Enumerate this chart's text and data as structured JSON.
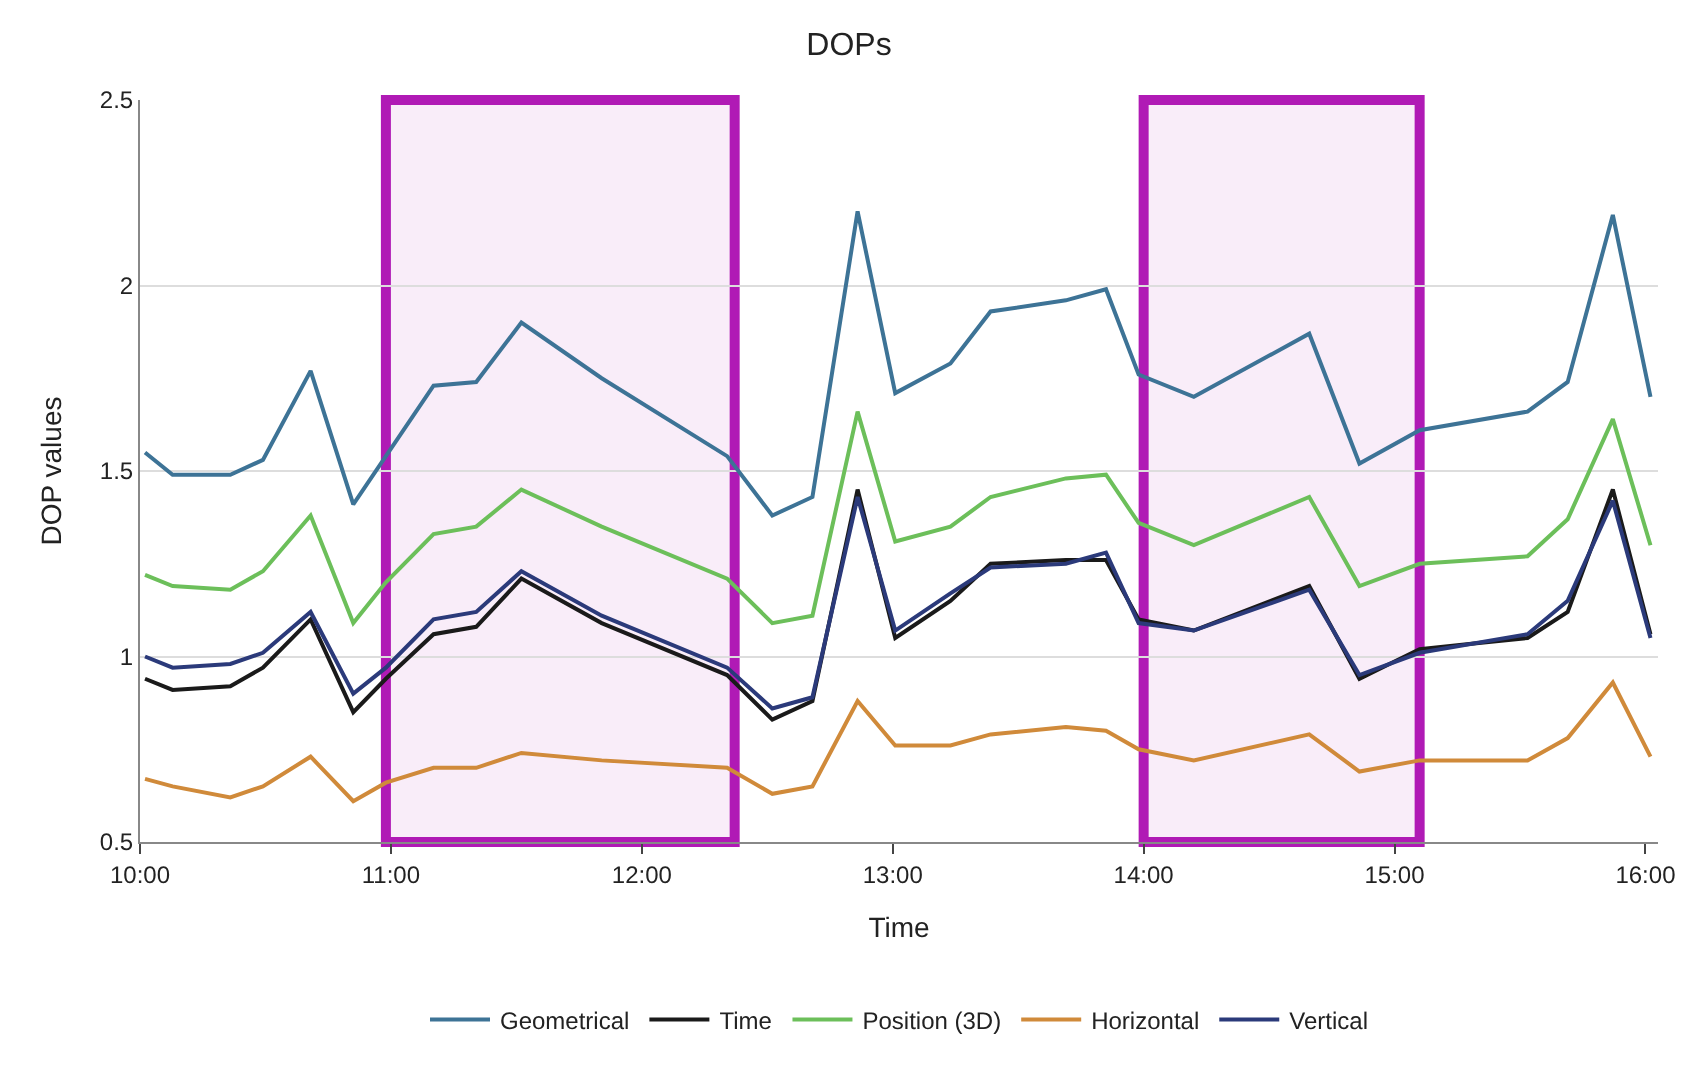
{
  "chart_data": {
    "type": "line",
    "title": "DOPs",
    "xlabel": "Time",
    "ylabel": "DOP values",
    "x": [
      10.02,
      10.13,
      10.36,
      10.49,
      10.68,
      10.85,
      10.98,
      11.17,
      11.34,
      11.52,
      11.84,
      12.34,
      12.52,
      12.68,
      12.86,
      13.01,
      13.23,
      13.39,
      13.69,
      13.85,
      13.98,
      14.2,
      14.66,
      14.86,
      15.1,
      15.53,
      15.69,
      15.87,
      16.02
    ],
    "series": [
      {
        "name": "Geometrical",
        "color": "#3d7396",
        "values": [
          1.55,
          1.49,
          1.49,
          1.53,
          1.77,
          1.41,
          1.54,
          1.73,
          1.74,
          1.9,
          1.75,
          1.54,
          1.38,
          1.43,
          2.2,
          1.71,
          1.79,
          1.93,
          1.96,
          1.99,
          1.76,
          1.7,
          1.87,
          1.52,
          1.61,
          1.66,
          1.74,
          2.19,
          1.7
        ]
      },
      {
        "name": "Time",
        "color": "#1a1a1a",
        "values": [
          0.94,
          0.91,
          0.92,
          0.97,
          1.1,
          0.85,
          0.94,
          1.06,
          1.08,
          1.21,
          1.09,
          0.95,
          0.83,
          0.88,
          1.45,
          1.05,
          1.15,
          1.25,
          1.26,
          1.26,
          1.1,
          1.07,
          1.19,
          0.94,
          1.02,
          1.05,
          1.12,
          1.45,
          1.06
        ]
      },
      {
        "name": "Position (3D)",
        "color": "#6cbf5a",
        "values": [
          1.22,
          1.19,
          1.18,
          1.23,
          1.38,
          1.09,
          1.2,
          1.33,
          1.35,
          1.45,
          1.35,
          1.21,
          1.09,
          1.11,
          1.66,
          1.31,
          1.35,
          1.43,
          1.48,
          1.49,
          1.36,
          1.3,
          1.43,
          1.19,
          1.25,
          1.27,
          1.37,
          1.64,
          1.3
        ]
      },
      {
        "name": "Horizontal",
        "color": "#d08a3a",
        "values": [
          0.67,
          0.65,
          0.62,
          0.65,
          0.73,
          0.61,
          0.66,
          0.7,
          0.7,
          0.74,
          0.72,
          0.7,
          0.63,
          0.65,
          0.88,
          0.76,
          0.76,
          0.79,
          0.81,
          0.8,
          0.75,
          0.72,
          0.79,
          0.69,
          0.72,
          0.72,
          0.78,
          0.93,
          0.73
        ]
      },
      {
        "name": "Vertical",
        "color": "#2b3a7a",
        "values": [
          1.0,
          0.97,
          0.98,
          1.01,
          1.12,
          0.9,
          0.97,
          1.1,
          1.12,
          1.23,
          1.11,
          0.97,
          0.86,
          0.89,
          1.43,
          1.07,
          1.17,
          1.24,
          1.25,
          1.28,
          1.09,
          1.07,
          1.18,
          0.95,
          1.01,
          1.06,
          1.15,
          1.42,
          1.05
        ]
      }
    ],
    "xlim": [
      10,
      16.05
    ],
    "xticks": [
      {
        "value": 10,
        "label": "10:00"
      },
      {
        "value": 11,
        "label": "11:00"
      },
      {
        "value": 12,
        "label": "12:00"
      },
      {
        "value": 13,
        "label": "13:00"
      },
      {
        "value": 14,
        "label": "14:00"
      },
      {
        "value": 15,
        "label": "15:00"
      },
      {
        "value": 16,
        "label": "16:00"
      }
    ],
    "ylim": [
      0.5,
      2.5
    ],
    "yticks": [
      0.5,
      1,
      1.5,
      2,
      2.5
    ],
    "bands": [
      {
        "axis": "x",
        "from": 10.98,
        "to": 12.37,
        "color": "#b01ab5"
      },
      {
        "axis": "x",
        "from": 14.0,
        "to": 15.1,
        "color": "#b01ab5"
      }
    ],
    "grid": "y",
    "legend": "bottom",
    "marker": "none",
    "line_style": "solid"
  }
}
